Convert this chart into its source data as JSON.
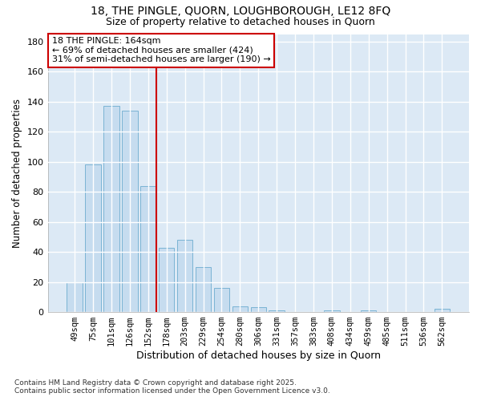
{
  "title_line1": "18, THE PINGLE, QUORN, LOUGHBOROUGH, LE12 8FQ",
  "title_line2": "Size of property relative to detached houses in Quorn",
  "xlabel": "Distribution of detached houses by size in Quorn",
  "ylabel": "Number of detached properties",
  "categories": [
    "49sqm",
    "75sqm",
    "101sqm",
    "126sqm",
    "152sqm",
    "178sqm",
    "203sqm",
    "229sqm",
    "254sqm",
    "280sqm",
    "306sqm",
    "331sqm",
    "357sqm",
    "383sqm",
    "408sqm",
    "434sqm",
    "459sqm",
    "485sqm",
    "511sqm",
    "536sqm",
    "562sqm"
  ],
  "values": [
    20,
    98,
    137,
    134,
    84,
    43,
    48,
    30,
    16,
    4,
    3,
    1,
    0,
    0,
    1,
    0,
    1,
    0,
    0,
    0,
    2
  ],
  "bar_color": "#c6dcef",
  "bar_edge_color": "#7ab3d4",
  "vline_color": "#cc0000",
  "annotation_text": "18 THE PINGLE: 164sqm\n← 69% of detached houses are smaller (424)\n31% of semi-detached houses are larger (190) →",
  "annotation_box_color": "white",
  "annotation_box_edge": "#cc0000",
  "ylim": [
    0,
    185
  ],
  "yticks": [
    0,
    20,
    40,
    60,
    80,
    100,
    120,
    140,
    160,
    180
  ],
  "plot_bg_color": "#dce9f5",
  "fig_bg_color": "#ffffff",
  "grid_color": "#ffffff",
  "footer": "Contains HM Land Registry data © Crown copyright and database right 2025.\nContains public sector information licensed under the Open Government Licence v3.0."
}
